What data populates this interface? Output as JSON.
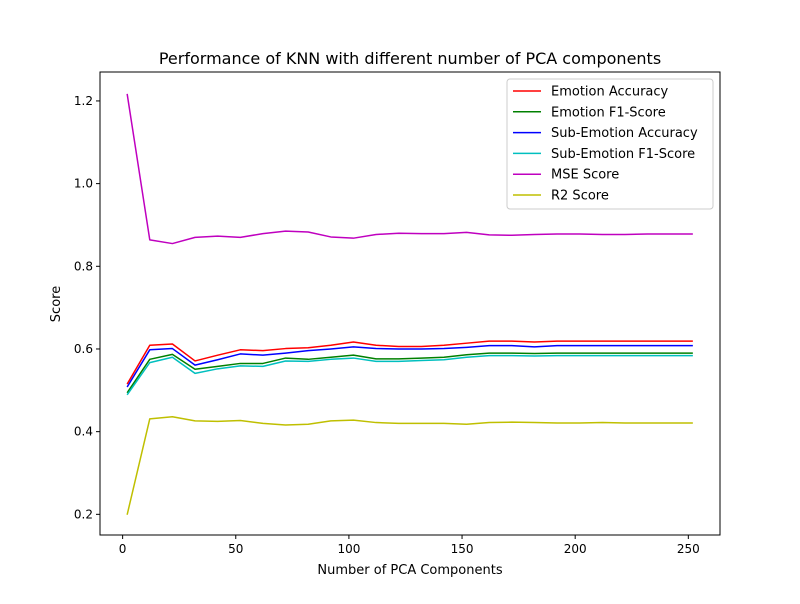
{
  "chart_data": {
    "type": "line",
    "title": "Performance of KNN with different number of PCA components",
    "xlabel": "Number of PCA Components",
    "ylabel": "Score",
    "xlim": [
      -10,
      264
    ],
    "ylim": [
      0.15,
      1.27
    ],
    "xticks": [
      0,
      50,
      100,
      150,
      200,
      250
    ],
    "yticks": [
      0.2,
      0.4,
      0.6,
      0.8,
      1.0,
      1.2
    ],
    "xtick_labels": [
      "0",
      "50",
      "100",
      "150",
      "200",
      "250"
    ],
    "ytick_labels": [
      "0.2",
      "0.4",
      "0.6",
      "0.8",
      "1.0",
      "1.2"
    ],
    "grid": false,
    "legend_position": "top-right",
    "x": [
      2,
      12,
      22,
      32,
      42,
      52,
      62,
      72,
      82,
      92,
      102,
      112,
      122,
      132,
      142,
      152,
      162,
      172,
      182,
      192,
      202,
      212,
      222,
      232,
      242,
      252
    ],
    "series": [
      {
        "name": "Emotion Accuracy",
        "color": "#ff0000",
        "values": [
          0.515,
          0.609,
          0.612,
          0.571,
          0.585,
          0.598,
          0.596,
          0.601,
          0.603,
          0.609,
          0.617,
          0.609,
          0.606,
          0.606,
          0.609,
          0.614,
          0.619,
          0.619,
          0.617,
          0.619,
          0.619,
          0.619,
          0.619,
          0.619,
          0.619,
          0.619
        ]
      },
      {
        "name": "Emotion F1-Score",
        "color": "#008000",
        "values": [
          0.494,
          0.575,
          0.587,
          0.551,
          0.558,
          0.565,
          0.565,
          0.578,
          0.575,
          0.58,
          0.585,
          0.576,
          0.576,
          0.578,
          0.58,
          0.586,
          0.59,
          0.59,
          0.589,
          0.59,
          0.59,
          0.59,
          0.59,
          0.59,
          0.59,
          0.59
        ]
      },
      {
        "name": "Sub-Emotion Accuracy",
        "color": "#0000ff",
        "values": [
          0.508,
          0.598,
          0.601,
          0.561,
          0.574,
          0.588,
          0.585,
          0.59,
          0.596,
          0.6,
          0.605,
          0.601,
          0.6,
          0.6,
          0.601,
          0.604,
          0.608,
          0.608,
          0.605,
          0.608,
          0.608,
          0.608,
          0.608,
          0.608,
          0.608,
          0.608
        ]
      },
      {
        "name": "Sub-Emotion F1-Score",
        "color": "#00bfbf",
        "values": [
          0.489,
          0.567,
          0.58,
          0.541,
          0.552,
          0.559,
          0.558,
          0.571,
          0.57,
          0.575,
          0.578,
          0.57,
          0.57,
          0.572,
          0.574,
          0.58,
          0.584,
          0.584,
          0.583,
          0.584,
          0.584,
          0.584,
          0.584,
          0.584,
          0.584,
          0.584
        ]
      },
      {
        "name": "MSE Score",
        "color": "#bf00bf",
        "values": [
          1.217,
          0.864,
          0.855,
          0.87,
          0.873,
          0.87,
          0.879,
          0.885,
          0.883,
          0.871,
          0.868,
          0.877,
          0.88,
          0.879,
          0.879,
          0.882,
          0.876,
          0.875,
          0.877,
          0.878,
          0.878,
          0.877,
          0.877,
          0.878,
          0.878,
          0.878
        ]
      },
      {
        "name": "R2 Score",
        "color": "#bfbf00",
        "values": [
          0.199,
          0.431,
          0.436,
          0.426,
          0.425,
          0.427,
          0.42,
          0.416,
          0.418,
          0.426,
          0.428,
          0.422,
          0.42,
          0.42,
          0.42,
          0.418,
          0.422,
          0.423,
          0.422,
          0.421,
          0.421,
          0.422,
          0.421,
          0.421,
          0.421,
          0.421
        ]
      }
    ]
  }
}
